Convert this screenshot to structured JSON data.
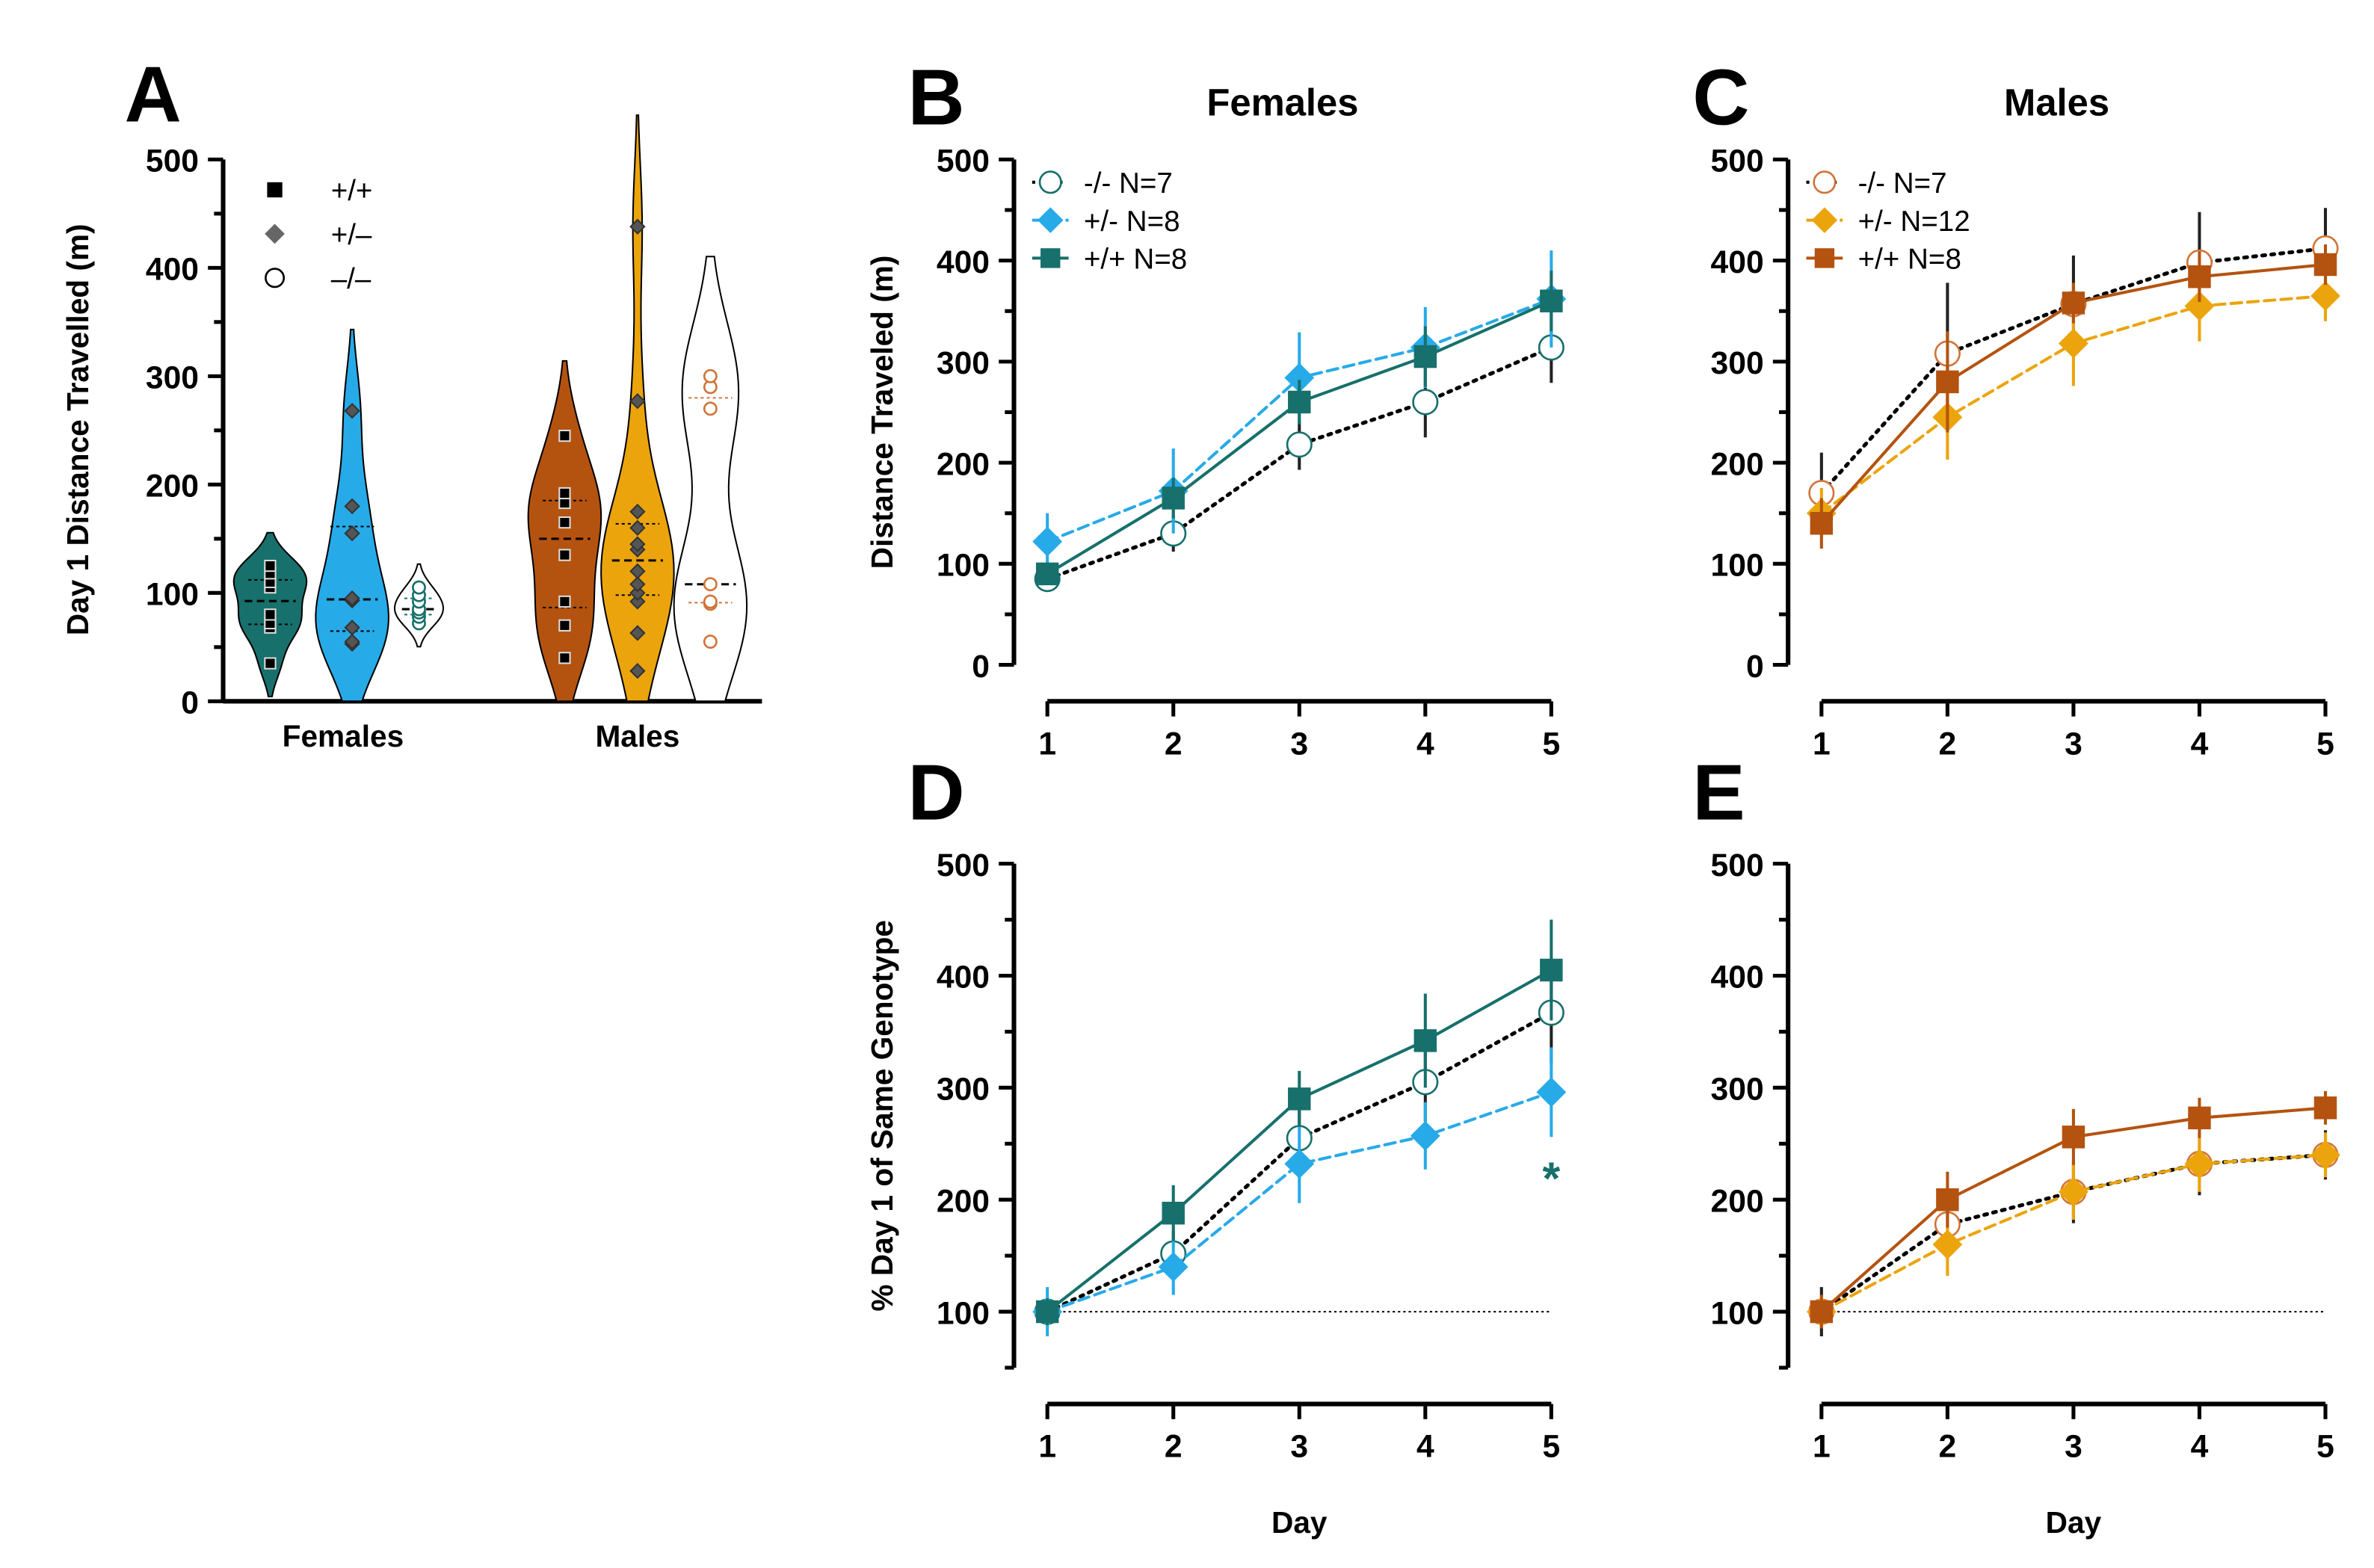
{
  "colors": {
    "teal": "#17706b",
    "blue": "#27aae8",
    "rust": "#b4530f",
    "gold": "#eba40c",
    "orange_edge": "#d0753a"
  },
  "chart_data": [
    {
      "id": "A",
      "type": "violin",
      "panel_label": "A",
      "ylabel": "Day 1 Distance Travelled (m)",
      "ylim": [
        0,
        500
      ],
      "yticks": [
        0,
        100,
        200,
        300,
        400,
        500
      ],
      "categories": [
        "Females",
        "Males"
      ],
      "legend": [
        {
          "marker": "square",
          "label": "+/+"
        },
        {
          "marker": "diamond",
          "label": "+/–"
        },
        {
          "marker": "circle",
          "label": "–/–"
        }
      ],
      "groups": [
        {
          "category": "Females",
          "genotype": "+/+",
          "color": "#17706b",
          "points": [
            125,
            118,
            110,
            105,
            80,
            72,
            68,
            35
          ]
        },
        {
          "category": "Females",
          "genotype": "+/-",
          "color": "#27aae8",
          "points": [
            268,
            180,
            155,
            95,
            93,
            68,
            55,
            53
          ]
        },
        {
          "category": "Females",
          "genotype": "-/-",
          "color": "#ffffff",
          "points": [
            105,
            98,
            92,
            85,
            82,
            78,
            72
          ]
        },
        {
          "category": "Males",
          "genotype": "+/+",
          "color": "#b4530f",
          "points": [
            245,
            192,
            183,
            165,
            135,
            92,
            70,
            40
          ]
        },
        {
          "category": "Males",
          "genotype": "+/-",
          "color": "#eba40c",
          "points": [
            438,
            277,
            175,
            160,
            145,
            140,
            120,
            108,
            100,
            92,
            63,
            28
          ]
        },
        {
          "category": "Males",
          "genotype": "-/-",
          "color": "#ffffff",
          "points": [
            300,
            290,
            270,
            108,
            92,
            90,
            55
          ]
        }
      ]
    },
    {
      "id": "B",
      "type": "line",
      "panel_label": "B",
      "title": "Females",
      "ylabel": "Distance Traveled (m)",
      "xlabel": "",
      "ylim": [
        0,
        500
      ],
      "yticks": [
        0,
        100,
        200,
        300,
        400,
        500
      ],
      "x": [
        1,
        2,
        3,
        4,
        5
      ],
      "series": [
        {
          "name": "-/- N=7",
          "marker": "circle",
          "color": "#000000",
          "edge": "#17706b",
          "dash": "dot",
          "values": [
            85,
            130,
            218,
            260,
            314
          ],
          "err": [
            8,
            18,
            25,
            35,
            35
          ]
        },
        {
          "name": "+/- N=8",
          "marker": "diamond",
          "color": "#27aae8",
          "edge": "#27aae8",
          "dash": "dash",
          "values": [
            122,
            172,
            284,
            314,
            362
          ],
          "err": [
            28,
            42,
            45,
            40,
            48
          ]
        },
        {
          "name": "+/+ N=8",
          "marker": "square",
          "color": "#17706b",
          "edge": "#17706b",
          "dash": "solid",
          "values": [
            90,
            165,
            260,
            305,
            360
          ],
          "err": [
            10,
            20,
            22,
            30,
            30
          ]
        }
      ]
    },
    {
      "id": "C",
      "type": "line",
      "panel_label": "C",
      "title": "Males",
      "ylabel": "",
      "xlabel": "",
      "ylim": [
        0,
        500
      ],
      "yticks": [
        0,
        100,
        200,
        300,
        400,
        500
      ],
      "x": [
        1,
        2,
        3,
        4,
        5
      ],
      "series": [
        {
          "name": "-/- N=7",
          "marker": "circle",
          "color": "#000000",
          "edge": "#d0753a",
          "dash": "dot",
          "values": [
            170,
            308,
            357,
            398,
            412
          ],
          "err": [
            40,
            70,
            48,
            50,
            40
          ]
        },
        {
          "name": "+/- N=12",
          "marker": "diamond",
          "color": "#eba40c",
          "edge": "#eba40c",
          "dash": "dash",
          "values": [
            150,
            245,
            318,
            355,
            365
          ],
          "err": [
            25,
            42,
            42,
            35,
            25
          ]
        },
        {
          "name": "+/+ N=8",
          "marker": "square",
          "color": "#b4530f",
          "edge": "#b4530f",
          "dash": "solid",
          "values": [
            140,
            280,
            358,
            384,
            396
          ],
          "err": [
            25,
            50,
            20,
            25,
            20
          ]
        }
      ]
    },
    {
      "id": "D",
      "type": "line",
      "panel_label": "D",
      "ylabel": "% Day 1 of Same Genotype",
      "xlabel": "Day",
      "ylim": [
        0,
        500
      ],
      "yticks": [
        100,
        200,
        300,
        400,
        500
      ],
      "x": [
        1,
        2,
        3,
        4,
        5
      ],
      "reference_line": 100,
      "annotation": "*",
      "series": [
        {
          "name": "-/-",
          "marker": "circle",
          "color": "#000000",
          "edge": "#17706b",
          "dash": "dot",
          "values": [
            100,
            152,
            255,
            305,
            367
          ],
          "err": [
            10,
            20,
            25,
            35,
            45
          ]
        },
        {
          "name": "+/-",
          "marker": "diamond",
          "color": "#27aae8",
          "edge": "#27aae8",
          "dash": "dash",
          "values": [
            100,
            140,
            232,
            257,
            296
          ],
          "err": [
            22,
            25,
            35,
            30,
            40
          ]
        },
        {
          "name": "+/+",
          "marker": "square",
          "color": "#17706b",
          "edge": "#17706b",
          "dash": "solid",
          "values": [
            100,
            188,
            290,
            342,
            405
          ],
          "err": [
            12,
            25,
            25,
            42,
            45
          ]
        }
      ]
    },
    {
      "id": "E",
      "type": "line",
      "panel_label": "E",
      "ylabel": "",
      "xlabel": "Day",
      "ylim": [
        0,
        500
      ],
      "yticks": [
        100,
        200,
        300,
        400,
        500
      ],
      "x": [
        1,
        2,
        3,
        4,
        5
      ],
      "reference_line": 100,
      "series": [
        {
          "name": "-/-",
          "marker": "circle",
          "color": "#000000",
          "edge": "#d0753a",
          "dash": "dot",
          "values": [
            100,
            178,
            207,
            232,
            240
          ],
          "err": [
            22,
            30,
            28,
            28,
            22
          ]
        },
        {
          "name": "+/-",
          "marker": "diamond",
          "color": "#eba40c",
          "edge": "#eba40c",
          "dash": "dash",
          "values": [
            100,
            160,
            207,
            232,
            240
          ],
          "err": [
            15,
            28,
            25,
            25,
            20
          ]
        },
        {
          "name": "+/+",
          "marker": "square",
          "color": "#b4530f",
          "edge": "#b4530f",
          "dash": "solid",
          "values": [
            100,
            200,
            256,
            273,
            282
          ],
          "err": [
            15,
            25,
            25,
            18,
            15
          ]
        }
      ]
    }
  ]
}
